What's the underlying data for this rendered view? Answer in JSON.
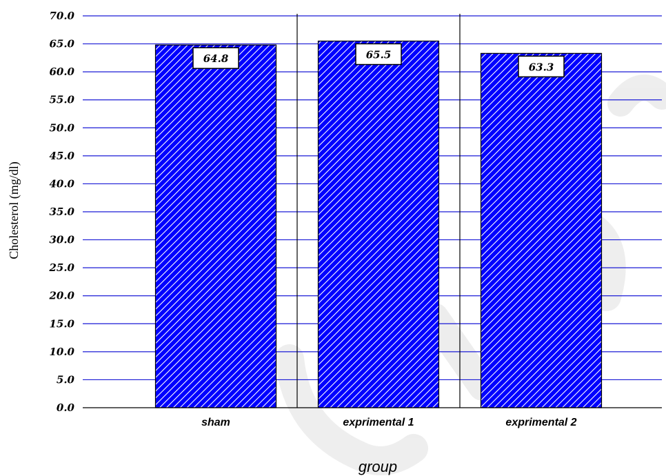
{
  "chart_data": {
    "type": "bar",
    "categories": [
      "sham",
      "exprimental 1",
      "exprimental 2"
    ],
    "values": [
      64.8,
      65.5,
      63.3
    ],
    "value_labels": [
      "64.8",
      "65.5",
      "63.3"
    ],
    "title": "",
    "xlabel": "group",
    "ylabel": "Cholesterol (mg/dl)",
    "ylim": [
      0,
      70
    ],
    "yticks": [
      "0.0",
      "5.0",
      "10.0",
      "15.0",
      "20.0",
      "25.0",
      "30.0",
      "35.0",
      "40.0",
      "45.0",
      "50.0",
      "55.0",
      "60.0",
      "65.0",
      "70.0"
    ],
    "grid": "horizontal",
    "legend": "none",
    "colors": {
      "bar_fill": "#0000ff",
      "bar_hatch": "#ffffff",
      "gridline": "#1a1ad6",
      "watermark": "#d9d9d9"
    }
  }
}
